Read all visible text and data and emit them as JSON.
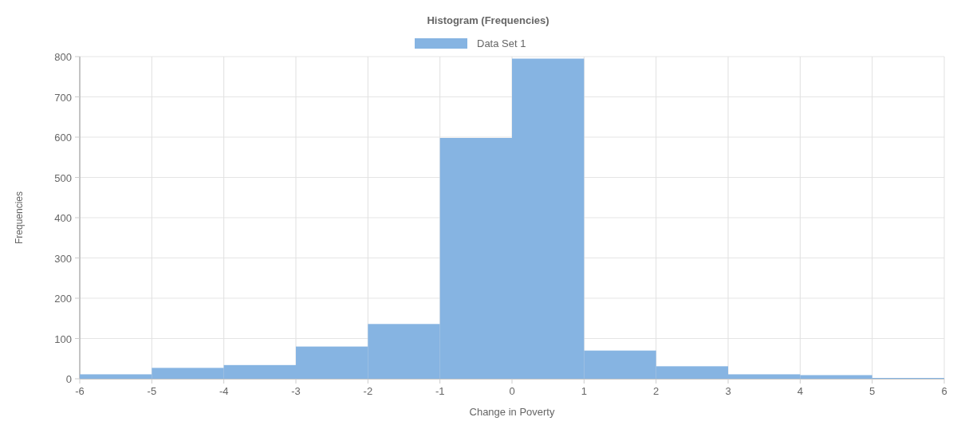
{
  "chart_data": {
    "type": "histogram",
    "title": "Histogram (Frequencies)",
    "xlabel": "Change in Poverty",
    "ylabel": "Frequencies",
    "bins": [
      -6,
      -5,
      -4,
      -3,
      -2,
      -1,
      0,
      1,
      2,
      3,
      4,
      5,
      6
    ],
    "series": [
      {
        "name": "Data Set 1",
        "color": "#86b4e2",
        "values": [
          11,
          27,
          34,
          80,
          136,
          598,
          795,
          70,
          31,
          11,
          9,
          2
        ]
      }
    ],
    "xlim": [
      -6,
      6
    ],
    "xticks": [
      -6,
      -5,
      -4,
      -3,
      -2,
      -1,
      0,
      1,
      2,
      3,
      4,
      5,
      6
    ],
    "ylim": [
      0,
      800
    ],
    "yticks": [
      0,
      100,
      200,
      300,
      400,
      500,
      600,
      700,
      800
    ],
    "grid": true,
    "legend": "top"
  }
}
